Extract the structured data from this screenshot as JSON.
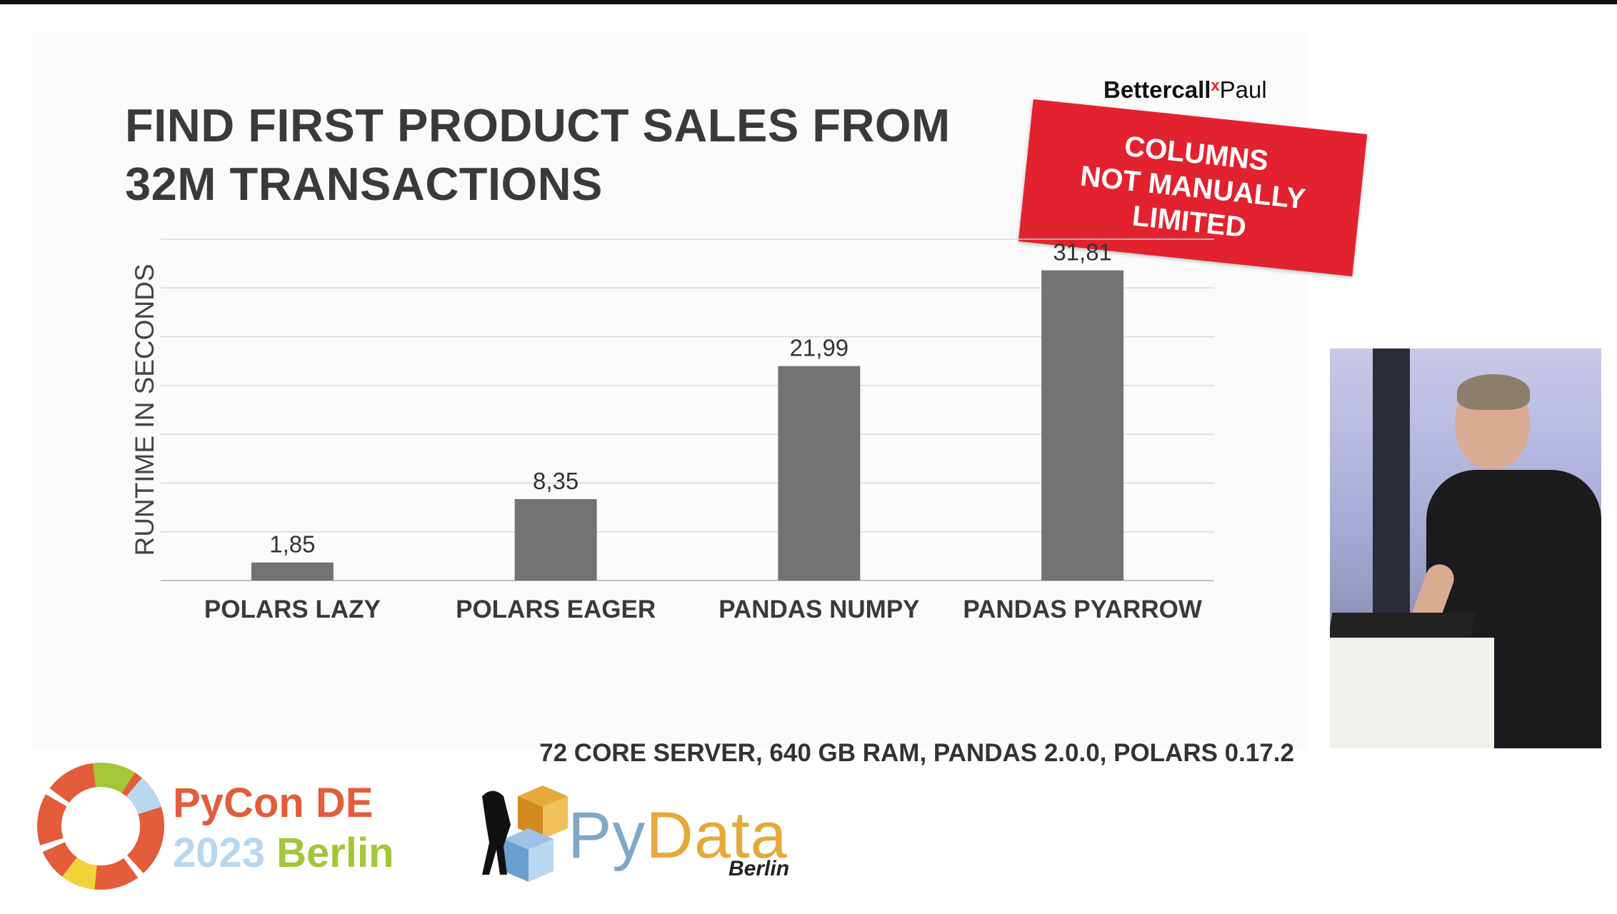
{
  "slide": {
    "title_line1": "FIND FIRST PRODUCT SALES FROM",
    "title_line2": "32M TRANSACTIONS",
    "brand_part1": "Bettercall",
    "brand_x": "x",
    "brand_part2": "Paul",
    "stamp_text": "COLUMNS\nNOT MANUALLY\nLIMITED",
    "footnote": "72 CORE SERVER, 640 GB RAM, PANDAS 2.0.0, POLARS 0.17.2"
  },
  "chart_data": {
    "type": "bar",
    "categories": [
      "POLARS LAZY",
      "POLARS EAGER",
      "PANDAS NUMPY",
      "PANDAS PYARROW"
    ],
    "values": [
      1.85,
      8.35,
      21.99,
      31.81
    ],
    "data_labels": [
      "1,85",
      "8,35",
      "21,99",
      "31,81"
    ],
    "title": "FIND FIRST PRODUCT SALES FROM 32M TRANSACTIONS",
    "xlabel": "",
    "ylabel": "RUNTIME IN SECONDS",
    "ylim": [
      0,
      35
    ],
    "grid": true,
    "bar_color": "#737373"
  },
  "branding": {
    "pycon_line1_a": "PyCon",
    "pycon_line1_b": "DE",
    "pycon_line2_a": "2023",
    "pycon_line2_b": "Berlin",
    "pydata_py": "Py",
    "pydata_data": "Data",
    "pydata_city": "Berlin"
  },
  "colors": {
    "stamp_red": "#e3222f",
    "title_text": "#3a3a3a",
    "grid": "#d9d9d9"
  }
}
